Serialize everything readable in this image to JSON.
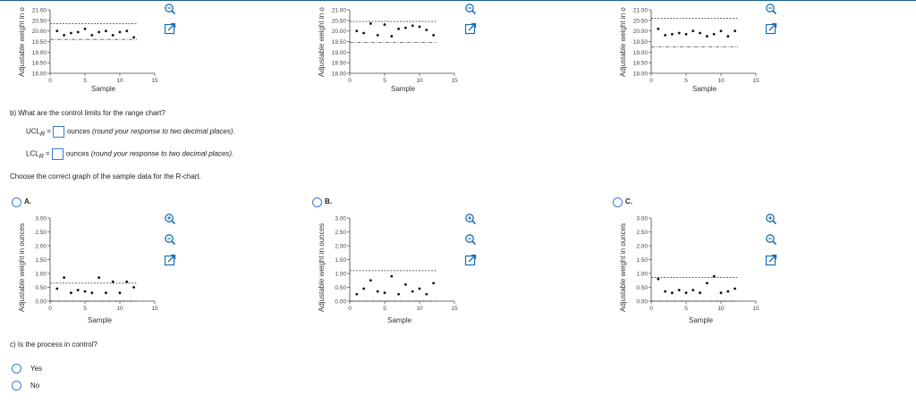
{
  "top_charts": {
    "ylabel": "Adjustable weight in o",
    "xlabel": "Sample",
    "yticks": [
      "21.00",
      "20.50",
      "20.00",
      "19.50",
      "19.00",
      "18.50",
      "18.00"
    ],
    "xticks": [
      "0",
      "5",
      "10",
      "15"
    ]
  },
  "bottom_charts": {
    "ylabel": "Adjustable weight in ounces",
    "xlabel": "Sample",
    "yticks": [
      "3.00",
      "2.50",
      "2.00",
      "1.50",
      "1.00",
      "0.50",
      "0.00"
    ],
    "xticks": [
      "0",
      "5",
      "10",
      "15"
    ]
  },
  "question_b": {
    "prompt": "b) What are the control limits for the range chart?",
    "ucl_label": "UCL",
    "lcl_label": "LCL",
    "sub": "R",
    "equals": "=",
    "unit": "ounces",
    "hint": "(round your response to two decimal places)."
  },
  "choose_text": "Choose the correct graph of the sample data for the R-chart.",
  "options": {
    "a": "A.",
    "b": "B.",
    "c": "C."
  },
  "question_c": {
    "prompt": "c) Is the process in control?",
    "yes": "Yes",
    "no": "No"
  },
  "colors": {
    "accent": "#3a7bd5",
    "icon_blue": "#1a6fb5"
  },
  "icons": [
    "zoom-in-icon",
    "zoom-out-icon",
    "popout-icon"
  ],
  "chart_data": [
    {
      "type": "scatter",
      "title": "",
      "xlabel": "Sample",
      "ylabel": "Adjustable weight in o",
      "xlim": [
        0,
        15
      ],
      "ylim": [
        18.0,
        21.0
      ],
      "x": [
        1,
        2,
        3,
        4,
        5,
        6,
        7,
        8,
        9,
        10,
        11,
        12
      ],
      "values": [
        20.0,
        19.8,
        19.9,
        19.95,
        20.1,
        19.8,
        19.95,
        20.0,
        19.8,
        19.95,
        20.0,
        19.7
      ],
      "ucl": 20.35,
      "lcl": 19.6
    },
    {
      "type": "scatter",
      "title": "",
      "xlabel": "Sample",
      "ylabel": "Adjustable weight in o",
      "xlim": [
        0,
        15
      ],
      "ylim": [
        18.0,
        21.0
      ],
      "x": [
        1,
        2,
        3,
        4,
        5,
        6,
        7,
        8,
        9,
        10,
        11,
        12
      ],
      "values": [
        20.0,
        19.9,
        20.35,
        19.8,
        20.3,
        19.75,
        20.1,
        20.15,
        20.25,
        20.2,
        20.05,
        19.8
      ],
      "ucl": 20.45,
      "lcl": 19.45
    },
    {
      "type": "scatter",
      "title": "",
      "xlabel": "Sample",
      "ylabel": "Adjustable weight in o",
      "xlim": [
        0,
        15
      ],
      "ylim": [
        18.0,
        21.0
      ],
      "x": [
        1,
        2,
        3,
        4,
        5,
        6,
        7,
        8,
        9,
        10,
        11,
        12
      ],
      "values": [
        20.1,
        19.8,
        19.85,
        19.9,
        19.85,
        20.0,
        19.9,
        19.75,
        19.85,
        20.0,
        19.75,
        20.0
      ],
      "ucl": 20.6,
      "lcl": 19.25
    },
    {
      "type": "scatter",
      "title": "",
      "xlabel": "Sample",
      "ylabel": "Adjustable weight in ounces",
      "xlim": [
        0,
        15
      ],
      "ylim": [
        0,
        3.0
      ],
      "x": [
        1,
        2,
        3,
        4,
        5,
        6,
        7,
        8,
        9,
        10,
        11,
        12
      ],
      "values": [
        0.45,
        0.85,
        0.3,
        0.4,
        0.35,
        0.3,
        0.85,
        0.3,
        0.7,
        0.3,
        0.7,
        0.5
      ],
      "ucl": 0.65,
      "lcl": 0.0
    },
    {
      "type": "scatter",
      "title": "",
      "xlabel": "Sample",
      "ylabel": "Adjustable weight in ounces",
      "xlim": [
        0,
        15
      ],
      "ylim": [
        0,
        3.0
      ],
      "x": [
        1,
        2,
        3,
        4,
        5,
        6,
        7,
        8,
        9,
        10,
        11,
        12
      ],
      "values": [
        0.25,
        0.45,
        0.75,
        0.35,
        0.3,
        0.9,
        0.25,
        0.6,
        0.35,
        0.45,
        0.25,
        0.65
      ],
      "ucl": 1.1,
      "lcl": 0.0
    },
    {
      "type": "scatter",
      "title": "",
      "xlabel": "Sample",
      "ylabel": "Adjustable weight in ounces",
      "xlim": [
        0,
        15
      ],
      "ylim": [
        0,
        3.0
      ],
      "x": [
        1,
        2,
        3,
        4,
        5,
        6,
        7,
        8,
        9,
        10,
        11,
        12
      ],
      "values": [
        0.8,
        0.35,
        0.3,
        0.4,
        0.3,
        0.4,
        0.3,
        0.65,
        0.9,
        0.3,
        0.35,
        0.45
      ],
      "ucl": 0.85,
      "lcl": 0.0
    }
  ]
}
